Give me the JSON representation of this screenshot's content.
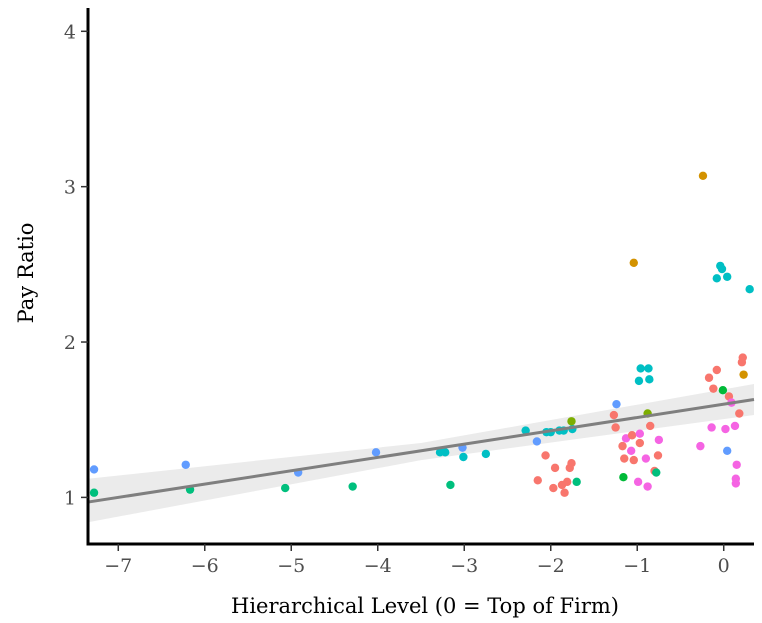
{
  "chart_data": {
    "type": "scatter",
    "title": "",
    "xlabel": "Hierarchical Level (0 = Top of Firm)",
    "ylabel": "Pay Ratio",
    "xlim": [
      -7.35,
      0.35
    ],
    "ylim": [
      0.7,
      4.15
    ],
    "x_ticks": [
      -7,
      -6,
      -5,
      -4,
      -3,
      -2,
      -1,
      0
    ],
    "x_tick_labels": [
      "−7",
      "−6",
      "−5",
      "−4",
      "−3",
      "−2",
      "−1",
      "0"
    ],
    "y_ticks": [
      1,
      2,
      3,
      4
    ],
    "y_tick_labels": [
      "1",
      "2",
      "3",
      "4"
    ],
    "grid": false,
    "legend": "none",
    "fit_line": {
      "color": "#7f7f7f",
      "band_color": "#ebebeb",
      "points": [
        [
          -7.35,
          0.97
        ],
        [
          0.35,
          1.63
        ]
      ],
      "band_upper": [
        [
          -7.35,
          1.12
        ],
        [
          -3.5,
          1.35
        ],
        [
          0.35,
          1.73
        ]
      ],
      "band_lower": [
        [
          -7.35,
          0.84
        ],
        [
          -3.5,
          1.24
        ],
        [
          0.35,
          1.53
        ]
      ]
    },
    "points": [
      {
        "x": -7.28,
        "y": 1.18,
        "color": "#619cff"
      },
      {
        "x": -7.28,
        "y": 1.03,
        "color": "#00bf7d"
      },
      {
        "x": -6.22,
        "y": 1.21,
        "color": "#619cff"
      },
      {
        "x": -6.17,
        "y": 1.05,
        "color": "#00bf7d"
      },
      {
        "x": -5.07,
        "y": 1.06,
        "color": "#00bf7d"
      },
      {
        "x": -4.92,
        "y": 1.16,
        "color": "#619cff"
      },
      {
        "x": -4.29,
        "y": 1.07,
        "color": "#00bf7d"
      },
      {
        "x": -4.02,
        "y": 1.29,
        "color": "#619cff"
      },
      {
        "x": -3.28,
        "y": 1.29,
        "color": "#00bfc4"
      },
      {
        "x": -3.22,
        "y": 1.29,
        "color": "#00bfc4"
      },
      {
        "x": -3.16,
        "y": 1.08,
        "color": "#00bf7d"
      },
      {
        "x": -3.02,
        "y": 1.32,
        "color": "#619cff"
      },
      {
        "x": -3.01,
        "y": 1.26,
        "color": "#00bfc4"
      },
      {
        "x": -2.75,
        "y": 1.28,
        "color": "#00bfc4"
      },
      {
        "x": -2.29,
        "y": 1.43,
        "color": "#00bfc4"
      },
      {
        "x": -2.16,
        "y": 1.36,
        "color": "#619cff"
      },
      {
        "x": -2.05,
        "y": 1.42,
        "color": "#00bfc4"
      },
      {
        "x": -2.0,
        "y": 1.42,
        "color": "#00bfc4"
      },
      {
        "x": -1.9,
        "y": 1.43,
        "color": "#00bfc4"
      },
      {
        "x": -1.85,
        "y": 1.43,
        "color": "#00bfc4"
      },
      {
        "x": -1.75,
        "y": 1.44,
        "color": "#00bfc4"
      },
      {
        "x": -1.76,
        "y": 1.49,
        "color": "#7cae00"
      },
      {
        "x": -2.15,
        "y": 1.11,
        "color": "#f8766d"
      },
      {
        "x": -2.06,
        "y": 1.27,
        "color": "#f8766d"
      },
      {
        "x": -1.95,
        "y": 1.19,
        "color": "#f8766d"
      },
      {
        "x": -1.97,
        "y": 1.06,
        "color": "#f8766d"
      },
      {
        "x": -1.87,
        "y": 1.08,
        "color": "#f8766d"
      },
      {
        "x": -1.84,
        "y": 1.03,
        "color": "#f8766d"
      },
      {
        "x": -1.81,
        "y": 1.1,
        "color": "#f8766d"
      },
      {
        "x": -1.78,
        "y": 1.19,
        "color": "#f8766d"
      },
      {
        "x": -1.76,
        "y": 1.22,
        "color": "#f8766d"
      },
      {
        "x": -1.7,
        "y": 1.1,
        "color": "#00bf7d"
      },
      {
        "x": -1.24,
        "y": 1.6,
        "color": "#619cff"
      },
      {
        "x": -1.27,
        "y": 1.53,
        "color": "#f8766d"
      },
      {
        "x": -1.25,
        "y": 1.45,
        "color": "#f8766d"
      },
      {
        "x": -1.17,
        "y": 1.33,
        "color": "#f8766d"
      },
      {
        "x": -1.15,
        "y": 1.25,
        "color": "#f8766d"
      },
      {
        "x": -1.13,
        "y": 1.38,
        "color": "#f564e3"
      },
      {
        "x": -1.06,
        "y": 1.4,
        "color": "#f8766d"
      },
      {
        "x": -1.07,
        "y": 1.3,
        "color": "#f564e3"
      },
      {
        "x": -1.04,
        "y": 1.24,
        "color": "#f8766d"
      },
      {
        "x": -1.04,
        "y": 2.51,
        "color": "#d39200"
      },
      {
        "x": -1.16,
        "y": 1.13,
        "color": "#00ba38"
      },
      {
        "x": -0.98,
        "y": 1.75,
        "color": "#00bfc4"
      },
      {
        "x": -0.96,
        "y": 1.83,
        "color": "#00bfc4"
      },
      {
        "x": -0.97,
        "y": 1.35,
        "color": "#f8766d"
      },
      {
        "x": -0.97,
        "y": 1.41,
        "color": "#f564e3"
      },
      {
        "x": -0.99,
        "y": 1.1,
        "color": "#f564e3"
      },
      {
        "x": -0.9,
        "y": 1.25,
        "color": "#f564e3"
      },
      {
        "x": -0.88,
        "y": 1.54,
        "color": "#7cae00"
      },
      {
        "x": -0.87,
        "y": 1.83,
        "color": "#00bfc4"
      },
      {
        "x": -0.86,
        "y": 1.76,
        "color": "#00bfc4"
      },
      {
        "x": -0.85,
        "y": 1.46,
        "color": "#f8766d"
      },
      {
        "x": -0.88,
        "y": 1.07,
        "color": "#f564e3"
      },
      {
        "x": -0.8,
        "y": 1.17,
        "color": "#f8766d"
      },
      {
        "x": -0.78,
        "y": 1.16,
        "color": "#00bf7d"
      },
      {
        "x": -0.76,
        "y": 1.27,
        "color": "#f8766d"
      },
      {
        "x": -0.75,
        "y": 1.37,
        "color": "#f564e3"
      },
      {
        "x": -0.24,
        "y": 3.07,
        "color": "#d39200"
      },
      {
        "x": -0.27,
        "y": 1.33,
        "color": "#f564e3"
      },
      {
        "x": -0.17,
        "y": 1.77,
        "color": "#f8766d"
      },
      {
        "x": -0.14,
        "y": 1.45,
        "color": "#f564e3"
      },
      {
        "x": -0.12,
        "y": 1.7,
        "color": "#f8766d"
      },
      {
        "x": -0.08,
        "y": 1.82,
        "color": "#f8766d"
      },
      {
        "x": -0.08,
        "y": 2.41,
        "color": "#00bfc4"
      },
      {
        "x": -0.04,
        "y": 2.49,
        "color": "#00bfc4"
      },
      {
        "x": -0.02,
        "y": 2.47,
        "color": "#00bfc4"
      },
      {
        "x": 0.04,
        "y": 2.42,
        "color": "#00bfc4"
      },
      {
        "x": -0.01,
        "y": 1.69,
        "color": "#00ba38"
      },
      {
        "x": 0.02,
        "y": 1.44,
        "color": "#f564e3"
      },
      {
        "x": 0.04,
        "y": 1.3,
        "color": "#619cff"
      },
      {
        "x": 0.06,
        "y": 1.65,
        "color": "#f8766d"
      },
      {
        "x": 0.09,
        "y": 1.61,
        "color": "#f564e3"
      },
      {
        "x": 0.13,
        "y": 1.46,
        "color": "#f564e3"
      },
      {
        "x": 0.14,
        "y": 1.12,
        "color": "#f564e3"
      },
      {
        "x": 0.14,
        "y": 1.09,
        "color": "#f564e3"
      },
      {
        "x": 0.15,
        "y": 1.21,
        "color": "#f564e3"
      },
      {
        "x": 0.18,
        "y": 1.54,
        "color": "#f8766d"
      },
      {
        "x": 0.21,
        "y": 1.87,
        "color": "#f8766d"
      },
      {
        "x": 0.22,
        "y": 1.9,
        "color": "#f8766d"
      },
      {
        "x": 0.23,
        "y": 1.79,
        "color": "#d39200"
      },
      {
        "x": 0.3,
        "y": 2.34,
        "color": "#00bfc4"
      }
    ]
  }
}
